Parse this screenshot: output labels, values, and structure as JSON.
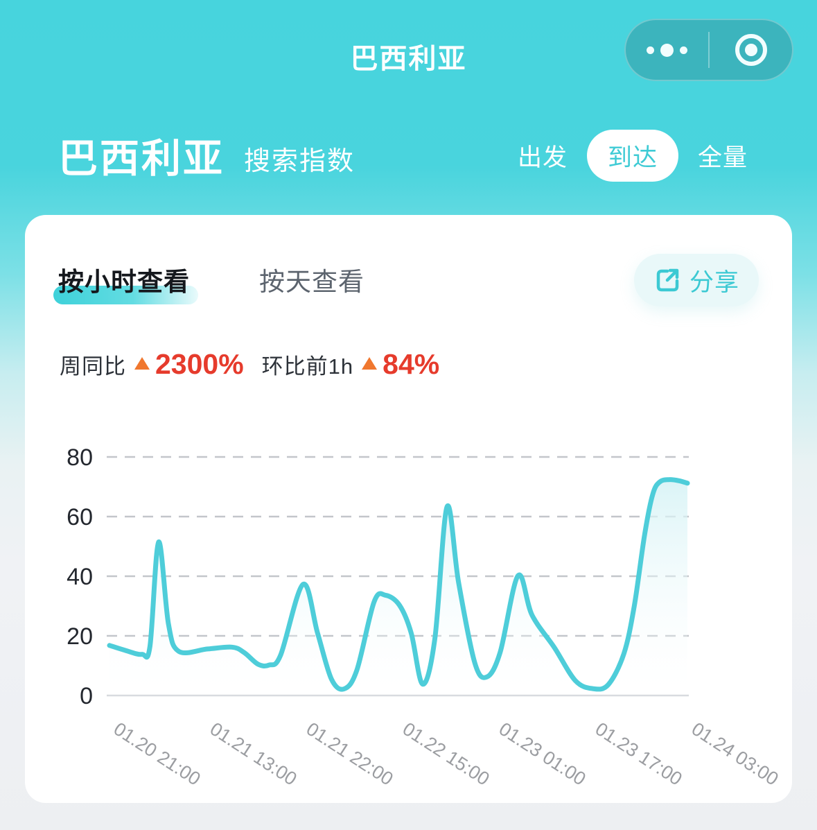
{
  "nav": {
    "title": "巴西利亚",
    "capsule": {
      "more_icon": "ellipsis-icon",
      "home_icon": "target-icon"
    }
  },
  "header": {
    "title": "巴西利亚",
    "subtitle": "搜索指数",
    "segments": [
      {
        "label": "出发",
        "active": false
      },
      {
        "label": "到达",
        "active": true
      },
      {
        "label": "全量",
        "active": false
      }
    ]
  },
  "card": {
    "tabs": [
      {
        "label": "按小时查看",
        "active": true
      },
      {
        "label": "按天查看",
        "active": false
      }
    ],
    "share": {
      "icon": "share-icon",
      "label": "分享"
    },
    "stats": [
      {
        "label": "周同比",
        "direction": "up",
        "value": "2300%"
      },
      {
        "label": "环比前1h",
        "direction": "up",
        "value": "84%"
      }
    ]
  },
  "chart_data": {
    "type": "area",
    "title": "",
    "xlabel": "",
    "ylabel": "",
    "ylim": [
      0,
      80
    ],
    "y_ticks": [
      0,
      20,
      40,
      60,
      80
    ],
    "x_tick_labels": [
      "01.20 21:00",
      "01.21 13:00",
      "01.21 22:00",
      "01.22 15:00",
      "01.23 01:00",
      "01.23 17:00",
      "01.24 03:00"
    ],
    "grid": "horizontal-dashed",
    "legend": "none",
    "line_color": "#4ecdd9",
    "fill_gradient": [
      "#d4f2f5",
      "#ffffff"
    ],
    "series": [
      {
        "name": "搜索指数",
        "points": [
          [
            0.0,
            16.8
          ],
          [
            0.026,
            15.2
          ],
          [
            0.056,
            13.8
          ],
          [
            0.07,
            16.5
          ],
          [
            0.085,
            51.5
          ],
          [
            0.102,
            24.0
          ],
          [
            0.12,
            14.8
          ],
          [
            0.17,
            15.6
          ],
          [
            0.212,
            16.2
          ],
          [
            0.233,
            14.4
          ],
          [
            0.257,
            10.5
          ],
          [
            0.276,
            10.2
          ],
          [
            0.296,
            13.5
          ],
          [
            0.335,
            37.3
          ],
          [
            0.36,
            21.0
          ],
          [
            0.384,
            5.5
          ],
          [
            0.406,
            2.2
          ],
          [
            0.428,
            8.5
          ],
          [
            0.458,
            31.5
          ],
          [
            0.478,
            33.6
          ],
          [
            0.502,
            30.2
          ],
          [
            0.522,
            21.0
          ],
          [
            0.542,
            3.8
          ],
          [
            0.563,
            19.0
          ],
          [
            0.584,
            63.3
          ],
          [
            0.604,
            38.0
          ],
          [
            0.632,
            11.0
          ],
          [
            0.653,
            6.2
          ],
          [
            0.676,
            14.5
          ],
          [
            0.707,
            40.2
          ],
          [
            0.731,
            27.0
          ],
          [
            0.77,
            16.0
          ],
          [
            0.806,
            5.0
          ],
          [
            0.836,
            2.3
          ],
          [
            0.863,
            3.6
          ],
          [
            0.89,
            14.0
          ],
          [
            0.908,
            30.0
          ],
          [
            0.926,
            54.0
          ],
          [
            0.94,
            67.5
          ],
          [
            0.952,
            71.6
          ],
          [
            0.968,
            72.4
          ],
          [
            0.986,
            72.0
          ],
          [
            1.0,
            71.2
          ]
        ]
      }
    ],
    "colors": {
      "accent_teal": "#3fcbd5",
      "stat_red": "#e63b2c",
      "stat_triangle_orange": "#f0772e",
      "header_teal": "#47d4dd"
    }
  }
}
